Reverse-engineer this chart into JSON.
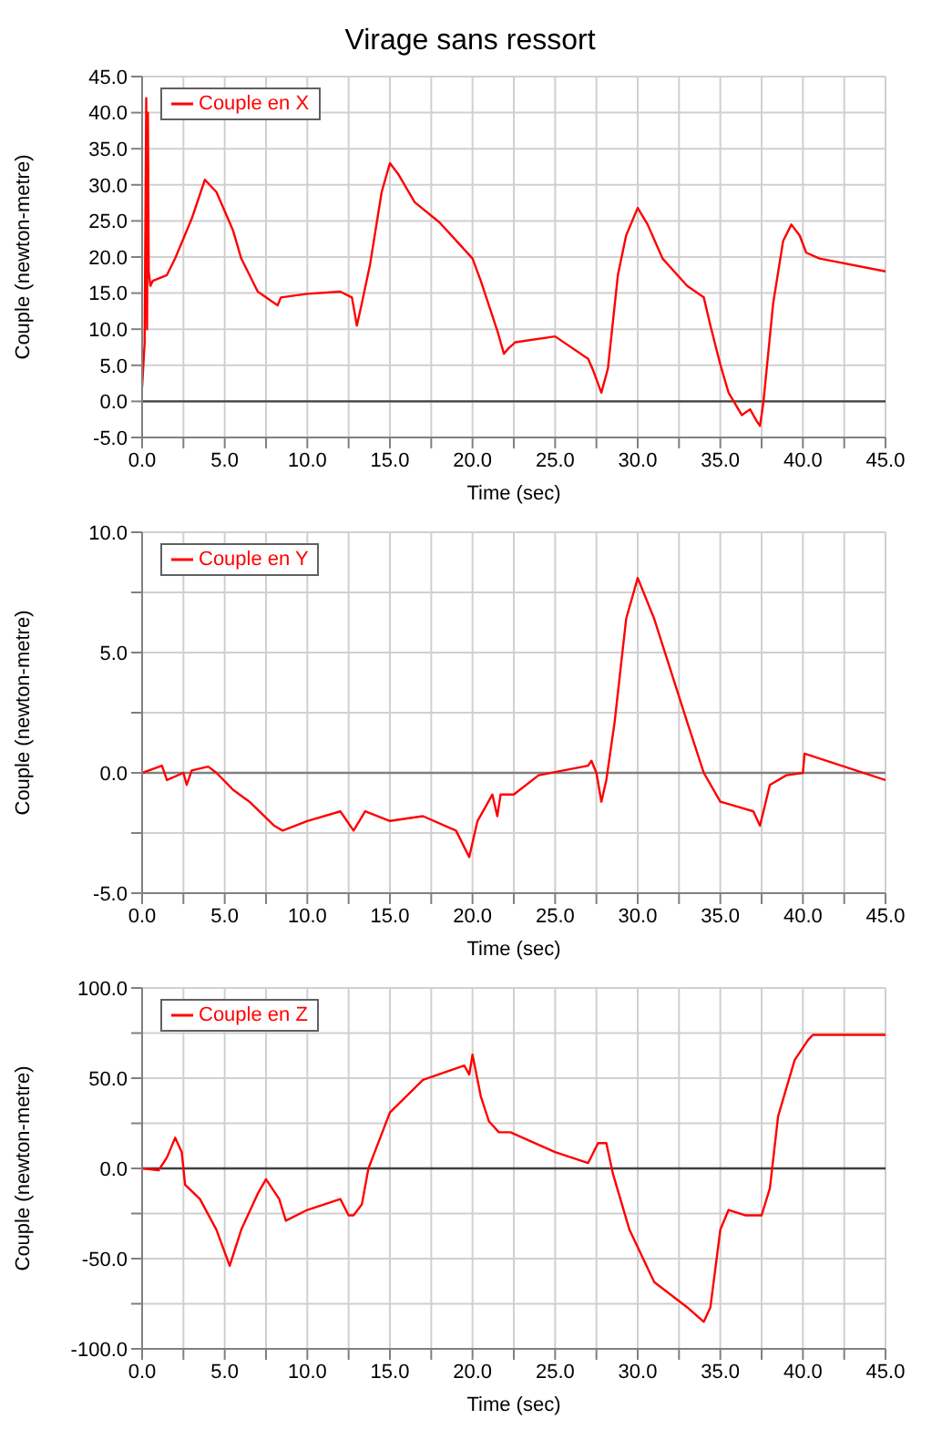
{
  "chart_data": [
    {
      "type": "line",
      "title": "Virage sans ressort",
      "xlabel": "Time (sec)",
      "ylabel": "Couple (newton-metre)",
      "legend": "top left",
      "grid": true,
      "marker": "none",
      "line_style": "solid",
      "xlim": [
        0,
        45
      ],
      "ylim": [
        -5,
        45
      ],
      "xticks": [
        {
          "value": 0,
          "label": "0.0"
        },
        {
          "value": 2.5,
          "label": null
        },
        {
          "value": 5,
          "label": "5.0"
        },
        {
          "value": 7.5,
          "label": null
        },
        {
          "value": 10,
          "label": "10.0"
        },
        {
          "value": 12.5,
          "label": null
        },
        {
          "value": 15,
          "label": "15.0"
        },
        {
          "value": 17.5,
          "label": null
        },
        {
          "value": 20,
          "label": "20.0"
        },
        {
          "value": 22.5,
          "label": null
        },
        {
          "value": 25,
          "label": "25.0"
        },
        {
          "value": 27.5,
          "label": null
        },
        {
          "value": 30,
          "label": "30.0"
        },
        {
          "value": 32.5,
          "label": null
        },
        {
          "value": 35,
          "label": "35.0"
        },
        {
          "value": 37.5,
          "label": null
        },
        {
          "value": 40,
          "label": "40.0"
        },
        {
          "value": 42.5,
          "label": null
        },
        {
          "value": 45,
          "label": "45.0"
        }
      ],
      "yticks": [
        {
          "value": -5,
          "label": "-5.0"
        },
        {
          "value": 0,
          "label": "0.0"
        },
        {
          "value": 5,
          "label": "5.0"
        },
        {
          "value": 10,
          "label": "10.0"
        },
        {
          "value": 15,
          "label": "15.0"
        },
        {
          "value": 20,
          "label": "20.0"
        },
        {
          "value": 25,
          "label": "25.0"
        },
        {
          "value": 30,
          "label": "30.0"
        },
        {
          "value": 35,
          "label": "35.0"
        },
        {
          "value": 40,
          "label": "40.0"
        },
        {
          "value": 45,
          "label": "45.0"
        }
      ],
      "ref_lines": [
        {
          "axis": "y",
          "value": 0,
          "color": "#404040"
        }
      ],
      "series": [
        {
          "name": "Couple en X",
          "color": "#ff0000",
          "x": [
            0,
            0.15,
            0.25,
            0.3,
            0.35,
            0.4,
            0.5,
            0.65,
            1.5,
            2,
            3,
            3.8,
            4.5,
            5.5,
            6,
            7,
            8.2,
            8.4,
            10,
            12,
            12.7,
            13,
            13.3,
            13.8,
            14.5,
            15,
            15.5,
            16.5,
            18,
            20,
            20.5,
            21.5,
            21.9,
            22.2,
            22.6,
            25,
            27,
            27.3,
            27.8,
            28.2,
            28.8,
            29.3,
            30,
            30.6,
            31.5,
            33,
            34,
            34.4,
            35,
            35.5,
            36.3,
            36.8,
            37.2,
            37.4,
            37.6,
            38.2,
            38.8,
            39.3,
            39.8,
            40.2,
            41,
            45
          ],
          "values": [
            2,
            8,
            42,
            10,
            40,
            18,
            16,
            16.7,
            17.5,
            19.8,
            25.3,
            30.7,
            29,
            23.7,
            19.8,
            15.2,
            13.3,
            14.4,
            14.9,
            15.2,
            14.4,
            10.5,
            13.6,
            19,
            29,
            33,
            31.5,
            27.6,
            24.8,
            19.8,
            16.7,
            9.8,
            6.6,
            7.4,
            8.2,
            9,
            5.9,
            4.3,
            1.2,
            4.6,
            17.5,
            23,
            26.8,
            24.5,
            19.8,
            16,
            14.4,
            10.5,
            5.1,
            1.2,
            -1.9,
            -1.1,
            -2.7,
            -3.4,
            -0.3,
            13.6,
            22.2,
            24.5,
            23,
            20.6,
            19.8,
            18
          ]
        }
      ]
    },
    {
      "type": "line",
      "xlabel": "Time (sec)",
      "ylabel": "Couple (newton-metre)",
      "legend": "top left",
      "grid": true,
      "marker": "none",
      "line_style": "solid",
      "xlim": [
        0,
        45
      ],
      "ylim": [
        -5,
        10
      ],
      "xticks": [
        {
          "value": 0,
          "label": "0.0"
        },
        {
          "value": 2.5,
          "label": null
        },
        {
          "value": 5,
          "label": "5.0"
        },
        {
          "value": 7.5,
          "label": null
        },
        {
          "value": 10,
          "label": "10.0"
        },
        {
          "value": 12.5,
          "label": null
        },
        {
          "value": 15,
          "label": "15.0"
        },
        {
          "value": 17.5,
          "label": null
        },
        {
          "value": 20,
          "label": "20.0"
        },
        {
          "value": 22.5,
          "label": null
        },
        {
          "value": 25,
          "label": "25.0"
        },
        {
          "value": 27.5,
          "label": null
        },
        {
          "value": 30,
          "label": "30.0"
        },
        {
          "value": 32.5,
          "label": null
        },
        {
          "value": 35,
          "label": "35.0"
        },
        {
          "value": 37.5,
          "label": null
        },
        {
          "value": 40,
          "label": "40.0"
        },
        {
          "value": 42.5,
          "label": null
        },
        {
          "value": 45,
          "label": "45.0"
        }
      ],
      "yticks": [
        {
          "value": -5,
          "label": "-5.0"
        },
        {
          "value": -2.5,
          "label": null
        },
        {
          "value": 0,
          "label": "0.0"
        },
        {
          "value": 2.5,
          "label": null
        },
        {
          "value": 5,
          "label": "5.0"
        },
        {
          "value": 7.5,
          "label": null
        },
        {
          "value": 10,
          "label": "10.0"
        }
      ],
      "ref_lines": [
        {
          "axis": "y",
          "value": 0,
          "color": "#808080"
        }
      ],
      "series": [
        {
          "name": "Couple en Y",
          "color": "#ff0000",
          "x": [
            0,
            1.2,
            1.5,
            2.5,
            2.7,
            3,
            4,
            4.5,
            5.5,
            6.5,
            8,
            8.5,
            10,
            12,
            12.8,
            13.5,
            15,
            17,
            19,
            19.8,
            20.3,
            20.8,
            21.2,
            21.5,
            21.7,
            22.5,
            24,
            27,
            27.2,
            27.5,
            27.8,
            28.1,
            28.6,
            29.3,
            30,
            31,
            33,
            34,
            35,
            36,
            37,
            37.4,
            38,
            39,
            40,
            40.1,
            45
          ],
          "values": [
            0,
            0.3,
            -0.3,
            0,
            -0.5,
            0.1,
            0.26,
            0,
            -0.7,
            -1.2,
            -2.2,
            -2.4,
            -2,
            -1.6,
            -2.4,
            -1.6,
            -2,
            -1.8,
            -2.4,
            -3.5,
            -2,
            -1.4,
            -0.9,
            -1.8,
            -0.9,
            -0.9,
            -0.1,
            0.3,
            0.5,
            0,
            -1.2,
            -0.3,
            2.1,
            6.4,
            8.1,
            6.4,
            2.1,
            0,
            -1.2,
            -1.4,
            -1.6,
            -2.2,
            -0.5,
            -0.1,
            0,
            0.8,
            -0.3
          ]
        }
      ]
    },
    {
      "type": "line",
      "xlabel": "Time (sec)",
      "ylabel": "Couple (newton-metre)",
      "legend": "top left",
      "grid": true,
      "marker": "none",
      "line_style": "solid",
      "xlim": [
        0,
        45
      ],
      "ylim": [
        -100,
        100
      ],
      "xticks": [
        {
          "value": 0,
          "label": "0.0"
        },
        {
          "value": 2.5,
          "label": null
        },
        {
          "value": 5,
          "label": "5.0"
        },
        {
          "value": 7.5,
          "label": null
        },
        {
          "value": 10,
          "label": "10.0"
        },
        {
          "value": 12.5,
          "label": null
        },
        {
          "value": 15,
          "label": "15.0"
        },
        {
          "value": 17.5,
          "label": null
        },
        {
          "value": 20,
          "label": "20.0"
        },
        {
          "value": 22.5,
          "label": null
        },
        {
          "value": 25,
          "label": "25.0"
        },
        {
          "value": 27.5,
          "label": null
        },
        {
          "value": 30,
          "label": "30.0"
        },
        {
          "value": 32.5,
          "label": null
        },
        {
          "value": 35,
          "label": "35.0"
        },
        {
          "value": 37.5,
          "label": null
        },
        {
          "value": 40,
          "label": "40.0"
        },
        {
          "value": 42.5,
          "label": null
        },
        {
          "value": 45,
          "label": "45.0"
        }
      ],
      "yticks": [
        {
          "value": -100,
          "label": "-100.0"
        },
        {
          "value": -75,
          "label": null
        },
        {
          "value": -50,
          "label": "-50.0"
        },
        {
          "value": -25,
          "label": null
        },
        {
          "value": 0,
          "label": "0.0"
        },
        {
          "value": 25,
          "label": null
        },
        {
          "value": 50,
          "label": "50.0"
        },
        {
          "value": 75,
          "label": null
        },
        {
          "value": 100,
          "label": "100.0"
        }
      ],
      "ref_lines": [
        {
          "axis": "y",
          "value": 0,
          "color": "#404040"
        }
      ],
      "series": [
        {
          "name": "Couple en Z",
          "color": "#ff0000",
          "x": [
            0,
            1,
            1.5,
            2,
            2.4,
            2.6,
            3.5,
            4.5,
            5.3,
            6,
            7,
            7.5,
            8.3,
            8.7,
            10,
            12,
            12.5,
            12.8,
            13.3,
            13.7,
            15,
            17,
            19.5,
            19.8,
            20,
            20.5,
            21,
            21.6,
            22.3,
            25,
            27,
            27.6,
            28.1,
            28.5,
            29.5,
            31,
            33,
            34,
            34.4,
            35,
            35.5,
            36.5,
            37.5,
            38,
            38.5,
            39.5,
            40.3,
            40.6,
            45
          ],
          "values": [
            0,
            -1,
            6,
            17,
            9,
            -9,
            -17,
            -34,
            -54,
            -34,
            -14,
            -6,
            -17,
            -29,
            -23,
            -17,
            -26,
            -26,
            -20,
            0,
            31,
            49,
            57,
            52,
            63,
            40,
            26,
            20,
            20,
            9,
            3,
            14,
            14,
            -3,
            -34,
            -63,
            -77,
            -85,
            -77,
            -34,
            -23,
            -26,
            -26,
            -11,
            29,
            60,
            71,
            74,
            74
          ]
        }
      ]
    }
  ]
}
